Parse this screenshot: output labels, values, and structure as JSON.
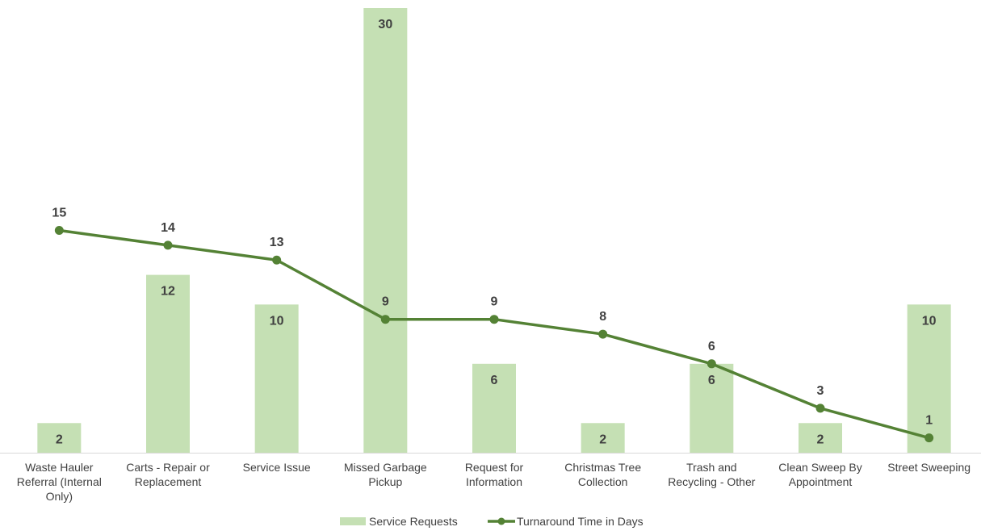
{
  "chart_data": {
    "type": "bar",
    "categories": [
      "Waste Hauler Referral (Internal Only)",
      "Carts - Repair or Replacement",
      "Service Issue",
      "Missed Garbage Pickup",
      "Request for Information",
      "Christmas Tree Collection",
      "Trash and Recycling - Other",
      "Clean Sweep By Appointment",
      "Street Sweeping"
    ],
    "category_lines": [
      [
        "Waste Hauler",
        "Referral (Internal",
        "Only)"
      ],
      [
        "Carts - Repair or",
        "Replacement"
      ],
      [
        "Service Issue"
      ],
      [
        "Missed Garbage",
        "Pickup"
      ],
      [
        "Request for",
        "Information"
      ],
      [
        "Christmas Tree",
        "Collection"
      ],
      [
        "Trash and",
        "Recycling - Other"
      ],
      [
        "Clean Sweep By",
        "Appointment"
      ],
      [
        "Street Sweeping"
      ]
    ],
    "series": [
      {
        "name": "Service Requests",
        "type": "bar",
        "color": "#c5e0b4",
        "values": [
          2,
          12,
          10,
          30,
          6,
          2,
          6,
          2,
          10
        ]
      },
      {
        "name": "Turnaround Time in Days",
        "type": "line",
        "color": "#548235",
        "values": [
          15,
          14,
          13,
          9,
          9,
          8,
          6,
          3,
          1
        ]
      }
    ],
    "ylim": [
      0,
      30
    ],
    "grid": false,
    "legend_position": "bottom",
    "data_labels": true
  }
}
